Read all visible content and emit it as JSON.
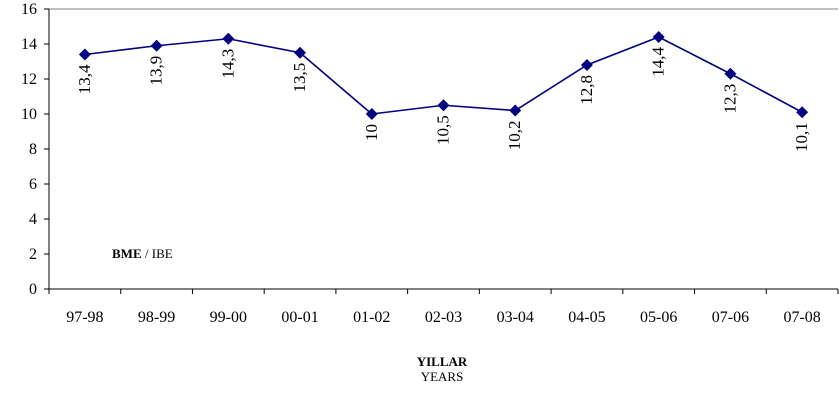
{
  "chart_data": {
    "type": "line",
    "categories": [
      "97-98",
      "98-99",
      "99-00",
      "00-01",
      "01-02",
      "02-03",
      "03-04",
      "04-05",
      "05-06",
      "07-06",
      "07-08"
    ],
    "series": [
      {
        "values": [
          13.4,
          13.9,
          14.3,
          13.5,
          10,
          10.5,
          10.2,
          12.8,
          14.4,
          12.3,
          10.1
        ],
        "labels": [
          "13,4",
          "13,9",
          "14,3",
          "13,5",
          "10",
          "10,5",
          "10,2",
          "12,8",
          "14,4",
          "12,3",
          "10,1"
        ],
        "color": "#000080"
      }
    ],
    "ylim": [
      0,
      16
    ],
    "yticks": [
      "0",
      "2",
      "4",
      "6",
      "8",
      "10",
      "12",
      "14",
      "16"
    ],
    "xlabel": "YILLAR",
    "xlabel_sub": "YEARS",
    "annotation": {
      "bold": "BME",
      "rest": " / IBE"
    },
    "grid": false,
    "legend": "none"
  }
}
